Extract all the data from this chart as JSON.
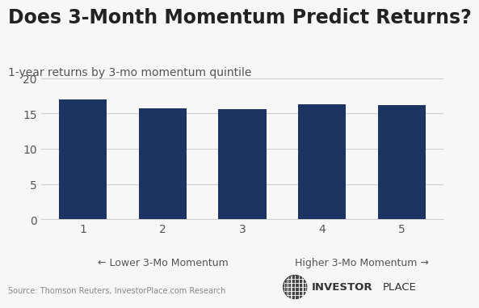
{
  "title": "Does 3-Month Momentum Predict Returns?",
  "subtitle": "1-year returns by 3-mo momentum quintile",
  "categories": [
    1,
    2,
    3,
    4,
    5
  ],
  "values": [
    17.0,
    15.7,
    15.6,
    16.3,
    16.2
  ],
  "bar_color": "#1c3461",
  "ylim": [
    0,
    20
  ],
  "yticks": [
    0,
    5,
    10,
    15,
    20
  ],
  "xlabel_left": "← Lower 3-Mo Momentum",
  "xlabel_right": "Higher 3-Mo Momentum →",
  "source_text": "Source: Thomson Reuters, InvestorPlace.com Research",
  "background_color": "#f7f7f7",
  "grid_color": "#d0d0d0",
  "title_fontsize": 17,
  "subtitle_fontsize": 10,
  "tick_fontsize": 10,
  "logo_bold": "INVESTOR",
  "logo_regular": "PLACE",
  "logo_color": "#333333"
}
